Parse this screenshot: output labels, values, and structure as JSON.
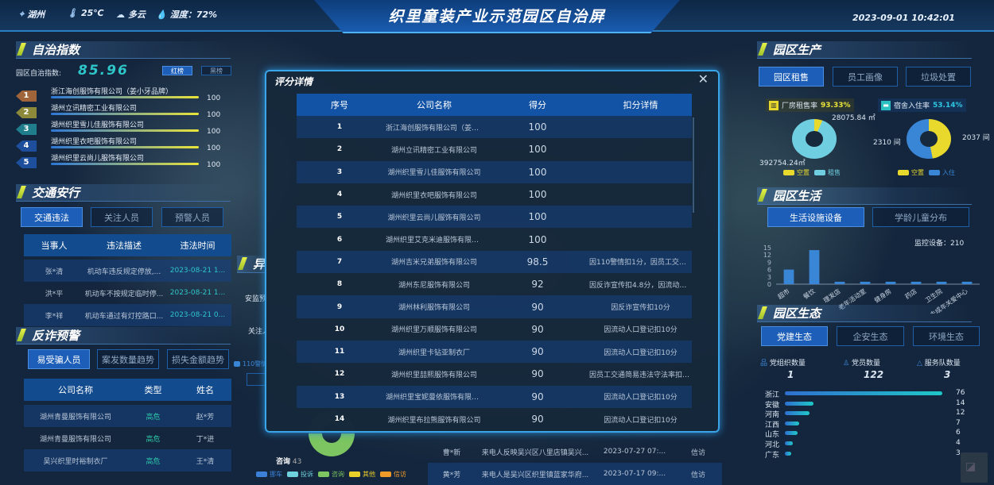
{
  "header": {
    "location": "湖州",
    "temperature": "25℃",
    "weather": "多云",
    "humidity": "湿度：72%",
    "title": "织里童装产业示范园区自治屏",
    "datetime": "2023-09-01  10:42:01"
  },
  "autonomy": {
    "title": "自治指数",
    "index_label": "园区自治指数:",
    "index_value": "85.96",
    "red_list": "红榜",
    "black_list": "黑榜",
    "ranks": [
      {
        "rank": "1",
        "name": "浙江海创服饰有限公司（姜小牙品牌）",
        "score": "100",
        "color": "#a0643a"
      },
      {
        "rank": "2",
        "name": "湖州立讯精密工业有限公司",
        "score": "100",
        "color": "#8c8a3a"
      },
      {
        "rank": "3",
        "name": "湖州织里雪儿佳服饰有限公司",
        "score": "100",
        "color": "#1f7d8c"
      },
      {
        "rank": "4",
        "name": "湖州织里衣吧服饰有限公司",
        "score": "100",
        "color": "#1d4f9c"
      },
      {
        "rank": "5",
        "name": "湖州织里云尚儿服饰有限公司",
        "score": "100",
        "color": "#1d4f9c"
      }
    ]
  },
  "traffic": {
    "title": "交通安行",
    "tabs": [
      "交通违法",
      "关注人员",
      "预警人员"
    ],
    "columns": [
      "当事人",
      "违法描述",
      "违法时间"
    ],
    "rows": [
      [
        "张*清",
        "机动车违反规定停放,...",
        "2023-08-21 1..."
      ],
      [
        "洪*平",
        "机动车不按规定临时停...",
        "2023-08-21 1..."
      ],
      [
        "李*祥",
        "机动车通过有灯控路口...",
        "2023-08-21 0..."
      ]
    ]
  },
  "fraud": {
    "title": "反诈预警",
    "tabs": [
      "易受骗人员",
      "案发数量趋势",
      "损失金额趋势"
    ],
    "columns": [
      "公司名称",
      "类型",
      "姓名"
    ],
    "rows": [
      [
        "湖州青曼服饰有限公司",
        "高危",
        "赵*芳"
      ],
      [
        "湖州青曼服饰有限公司",
        "高危",
        "丁*进"
      ],
      [
        "吴兴织里时裕制衣厂",
        "高危",
        "王*清"
      ]
    ]
  },
  "background_panel": {
    "title": "异常预警",
    "labels": [
      "安监预警",
      "关注人",
      "110警情"
    ],
    "donut_label": "咨询",
    "donut_value": "43",
    "legend": [
      {
        "name": "挪车",
        "color": "#3c7fd6"
      },
      {
        "name": "投诉",
        "color": "#6fd0de"
      },
      {
        "name": "咨询",
        "color": "#7cc560"
      },
      {
        "name": "其他",
        "color": "#e9cf2a"
      },
      {
        "name": "信访",
        "color": "#f09a2a"
      }
    ],
    "rows": [
      [
        "曹*新",
        "来电人反映吴兴区八里店镇吴兴...",
        "2023-07-27 07:...",
        "信访"
      ],
      [
        "黄*芳",
        "来电人是吴兴区织里镇蓝家华府...",
        "2023-07-17 09:...",
        "信访"
      ]
    ]
  },
  "modal": {
    "title": "评分详情",
    "columns": [
      "序号",
      "公司名称",
      "得分",
      "扣分详情"
    ],
    "rows": [
      [
        "1",
        "浙江海创服饰有限公司（姜小牙...",
        "100",
        ""
      ],
      [
        "2",
        "湖州立讯精密工业有限公司",
        "100",
        ""
      ],
      [
        "3",
        "湖州织里雪儿佳服饰有限公司",
        "100",
        ""
      ],
      [
        "4",
        "湖州织里衣吧服饰有限公司",
        "100",
        ""
      ],
      [
        "5",
        "湖州织里云尚儿服饰有限公司",
        "100",
        ""
      ],
      [
        "6",
        "湖州织里艾克米迪服饰有限公司",
        "100",
        ""
      ],
      [
        "7",
        "湖州吉米兄弟服饰有限公司",
        "98.5",
        "因110警情扣1分，因员工交通德..."
      ],
      [
        "8",
        "湖州东尼服饰有限公司",
        "92",
        "因反诈宣传扣4.8分，因流动人口..."
      ],
      [
        "9",
        "湖州林利服饰有限公司",
        "90",
        "因反诈宣传扣10分"
      ],
      [
        "10",
        "湖州织里万顺服饰有限公司",
        "90",
        "因流动人口登记扣10分"
      ],
      [
        "11",
        "湖州织里卡钻亚制衣厂",
        "90",
        "因流动人口登记扣10分"
      ],
      [
        "12",
        "湖州织里喆熙服饰有限公司",
        "90",
        "因员工交通简易违法守法率扣10分"
      ],
      [
        "13",
        "湖州织里宝妮曼依服饰有限公司",
        "90",
        "因流动人口登记扣10分"
      ],
      [
        "14",
        "湖州织里布拉熊服饰有限公司",
        "90",
        "因流动人口登记扣10分"
      ]
    ]
  },
  "production": {
    "title": "园区生产",
    "tabs": [
      "园区租售",
      "员工画像",
      "垃圾处置"
    ],
    "factory": {
      "label": "厂房租售率",
      "rate": "93.33%",
      "vacant": "28075.84 ㎡",
      "rented": "392754.24㎡",
      "legend": [
        "空置",
        "租售"
      ],
      "colors": [
        "#e9d92c",
        "#6fcfe0"
      ],
      "values": [
        28075.84,
        392754.24
      ]
    },
    "dorm": {
      "label": "宿舍入住率",
      "rate": "53.14%",
      "vacant": "2037 间",
      "occupied": "2310 间",
      "legend": [
        "空置",
        "入住"
      ],
      "colors": [
        "#e9d92c",
        "#3a86d6"
      ],
      "values": [
        2037,
        2310
      ]
    }
  },
  "life": {
    "title": "园区生活",
    "tabs": [
      "生活设施设备",
      "学龄儿童分布"
    ],
    "monitor": "监控设备：210",
    "chart_data": {
      "type": "bar",
      "categories": [
        "超市",
        "餐饮",
        "理发店",
        "老年活动室",
        "健身房",
        "药店",
        "卫生院",
        "未成年关爱中心"
      ],
      "values": [
        6,
        14,
        1,
        1,
        1,
        1,
        1,
        1
      ],
      "ylim": [
        0,
        15
      ],
      "yticks": [
        0,
        3,
        6,
        9,
        12,
        15
      ]
    }
  },
  "ecology": {
    "title": "园区生态",
    "tabs": [
      "党建生态",
      "企安生态",
      "环境生态"
    ],
    "stats": [
      {
        "label": "党组织数量",
        "value": "1"
      },
      {
        "label": "党员数量",
        "value": "122"
      },
      {
        "label": "服务队数量",
        "value": "3"
      }
    ],
    "chart_data": {
      "type": "bar",
      "categories": [
        "浙江",
        "安徽",
        "河南",
        "江西",
        "山东",
        "河北",
        "广东"
      ],
      "values": [
        76,
        14,
        12,
        7,
        6,
        4,
        3
      ],
      "xlim": [
        0,
        76
      ]
    }
  }
}
